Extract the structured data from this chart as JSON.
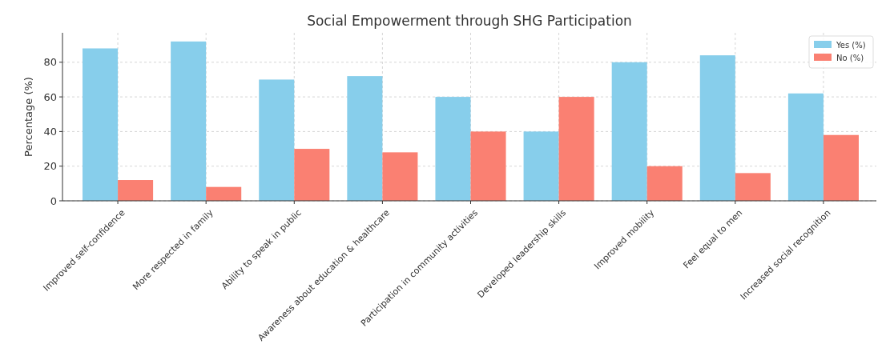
{
  "chart_data": {
    "type": "bar",
    "title": "Social Empowerment through SHG Participation",
    "ylabel": "Percentage (%)",
    "categories": [
      "Improved self-confidence",
      "More respected in family",
      "Ability to speak in public",
      "Awareness about education & healthcare",
      "Participation in community activities",
      "Developed leadership skills",
      "Improved mobility",
      "Feel equal to men",
      "Increased social recognition"
    ],
    "series": [
      {
        "name": "Yes (%)",
        "color": "#87ceeb",
        "values": [
          88,
          92,
          70,
          72,
          60,
          40,
          80,
          84,
          62
        ]
      },
      {
        "name": "No (%)",
        "color": "#fa8072",
        "values": [
          12,
          8,
          30,
          28,
          40,
          60,
          20,
          16,
          38
        ]
      }
    ],
    "ylim": [
      0,
      97
    ],
    "yticks": [
      0,
      20,
      40,
      60,
      80
    ],
    "grid": true,
    "legend": "top right"
  }
}
